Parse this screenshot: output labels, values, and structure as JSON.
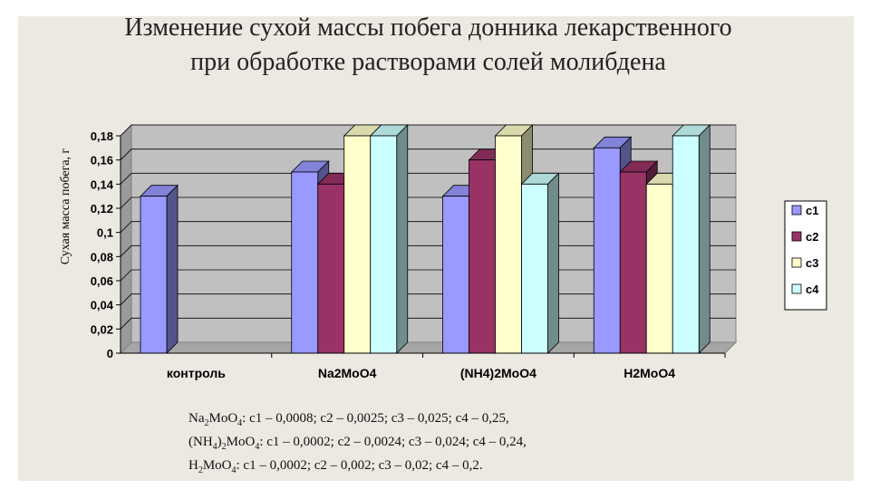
{
  "chart_data": {
    "type": "bar",
    "title": "Изменение сухой массы побега донника лекарственного при обработке растворами солей молибдена",
    "title_lines": [
      "Изменение сухой массы побега донника лекарственного",
      "при обработке растворами солей молибдена"
    ],
    "ylabel": "Сухая масса побега, г",
    "xlabel": "",
    "categories": [
      "контроль",
      "Na2MoO4",
      "(NH4)2MoO4",
      "H2MoO4"
    ],
    "ylim": [
      0,
      0.18
    ],
    "yticks": [
      0,
      0.02,
      0.04,
      0.06,
      0.08,
      0.1,
      0.12,
      0.14,
      0.16,
      0.18
    ],
    "ytick_labels": [
      "0",
      "0,02",
      "0,04",
      "0,06",
      "0,08",
      "0,1",
      "0,12",
      "0,14",
      "0,16",
      "0,18"
    ],
    "grid": true,
    "legend_position": "right",
    "series": [
      {
        "name": "c1",
        "color": "#9999ff",
        "values": [
          0.13,
          0.15,
          0.13,
          0.17
        ]
      },
      {
        "name": "c2",
        "color": "#993366",
        "values": [
          null,
          0.14,
          0.16,
          0.15
        ]
      },
      {
        "name": "c3",
        "color": "#ffffcc",
        "values": [
          null,
          0.18,
          0.18,
          0.14
        ]
      },
      {
        "name": "c4",
        "color": "#ccffff",
        "values": [
          null,
          0.18,
          0.14,
          0.18
        ]
      }
    ]
  },
  "notes": [
    {
      "parts": [
        [
          "Na",
          ""
        ],
        [
          "2",
          "sub"
        ],
        [
          "MoO",
          ""
        ],
        [
          "4",
          "sub"
        ],
        [
          ": c1 – 0,0008; c2 – 0,0025; c3 – 0,025; c4 – 0,25,",
          ""
        ]
      ]
    },
    {
      "parts": [
        [
          "(NH",
          ""
        ],
        [
          "4",
          "sub"
        ],
        [
          ")",
          ""
        ],
        [
          "2",
          "sub"
        ],
        [
          "MoO",
          ""
        ],
        [
          "4",
          "sub"
        ],
        [
          ":  c1 – 0,0002; c2 – 0,0024; c3 – 0,024; c4 – 0,24,",
          ""
        ]
      ]
    },
    {
      "parts": [
        [
          "H",
          ""
        ],
        [
          "2",
          "sub"
        ],
        [
          "MoO",
          ""
        ],
        [
          "4",
          "sub"
        ],
        [
          ":  c1 – 0,0002; c2 – 0,002; c3 – 0,02; c4 – 0,2.",
          ""
        ]
      ]
    }
  ]
}
